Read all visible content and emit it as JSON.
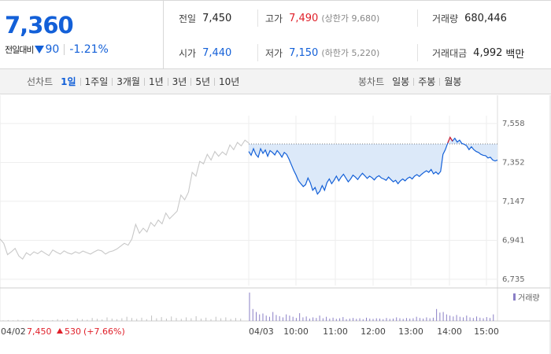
{
  "quote": {
    "price": "7,360",
    "change_label": "전일대비",
    "change_amount": "90",
    "change_pct": "-1.21%",
    "prev_close": {
      "label": "전일",
      "value": "7,450"
    },
    "open": {
      "label": "시가",
      "value": "7,440"
    },
    "high": {
      "label": "고가",
      "value": "7,490",
      "sub": "(상한가 9,680)"
    },
    "low": {
      "label": "저가",
      "value": "7,150",
      "sub": "(하한가 5,220)"
    },
    "volume": {
      "label": "거래량",
      "value": "680,446"
    },
    "amount": {
      "label": "거래대금",
      "value": "4,992",
      "unit": "백만"
    }
  },
  "toolbar": {
    "line_head": "선차트",
    "line_tabs": [
      "1일",
      "1주일",
      "3개월",
      "1년",
      "3년",
      "5년",
      "10년"
    ],
    "active_tab": "1일",
    "candle_head": "봉차트",
    "candle_tabs": [
      "일봉",
      "주봉",
      "월봉"
    ]
  },
  "colors": {
    "up": "#e0202a",
    "down": "#1360d8",
    "prev_day_line": "#c8c8c8",
    "fill": "#dce9f9",
    "volume": "#8a7fc6"
  },
  "chart_data": {
    "type": "line",
    "y_ticks": [
      7558,
      7352,
      7147,
      6941,
      6735
    ],
    "y_tick_labels": [
      "7,558",
      "7,352",
      "7,147",
      "6,941",
      "6,735"
    ],
    "ylim": [
      6735,
      7558
    ],
    "x_tick_labels": [
      "04/02",
      "04/03",
      "10:00",
      "11:00",
      "12:00",
      "13:00",
      "14:00",
      "15:00"
    ],
    "reference_line": 7450,
    "legend": "거래량",
    "prev_day_annotation": {
      "price": "7,450",
      "change": "530",
      "pct": "(+7.66%)"
    },
    "series": [
      {
        "day": "04/02",
        "x_start": 0,
        "x_end": 1,
        "values": [
          6948,
          6925,
          6865,
          6880,
          6898,
          6858,
          6842,
          6875,
          6862,
          6880,
          6870,
          6885,
          6872,
          6860,
          6890,
          6878,
          6868,
          6885,
          6874,
          6868,
          6880,
          6872,
          6884,
          6876,
          6868,
          6880,
          6890,
          6885,
          6868,
          6880,
          6885,
          6895,
          6910,
          6925,
          6915,
          6948,
          7025,
          6978,
          7005,
          6985,
          7035,
          7015,
          7048,
          7028,
          7085,
          7055,
          7075,
          7095,
          7180,
          7155,
          7195,
          7300,
          7280,
          7358,
          7345,
          7395,
          7365,
          7410,
          7385,
          7408,
          7392,
          7445,
          7420,
          7458,
          7440,
          7470,
          7455
        ]
      },
      {
        "day": "04/03",
        "x_start": 1,
        "x_end": 2,
        "values": [
          7410,
          7390,
          7425,
          7395,
          7380,
          7425,
          7400,
          7418,
          7385,
          7415,
          7405,
          7392,
          7415,
          7400,
          7380,
          7405,
          7395,
          7370,
          7340,
          7310,
          7285,
          7255,
          7240,
          7225,
          7235,
          7270,
          7245,
          7205,
          7220,
          7185,
          7200,
          7230,
          7205,
          7245,
          7265,
          7240,
          7258,
          7280,
          7255,
          7275,
          7290,
          7270,
          7250,
          7265,
          7285,
          7275,
          7262,
          7280,
          7295,
          7282,
          7268,
          7280,
          7272,
          7260,
          7275,
          7282,
          7270,
          7265,
          7258,
          7275,
          7262,
          7250,
          7258,
          7240,
          7255,
          7265,
          7255,
          7268,
          7275,
          7265,
          7280,
          7288,
          7278,
          7290,
          7300,
          7308,
          7300,
          7315,
          7292,
          7302,
          7290,
          7305,
          7395,
          7420,
          7455,
          7485,
          7465,
          7480,
          7460,
          7470,
          7452,
          7448,
          7440,
          7420,
          7435,
          7420,
          7410,
          7405,
          7395,
          7390,
          7388,
          7376,
          7380,
          7365,
          7360,
          7365
        ]
      }
    ],
    "volume": {
      "ylim": [
        0,
        100
      ],
      "prev_day": [
        2,
        3,
        2,
        4,
        3,
        2,
        5,
        3,
        4,
        2,
        3,
        6,
        4,
        5,
        3,
        8,
        6,
        4,
        10,
        7,
        5,
        12,
        8,
        6,
        9,
        14,
        10,
        7,
        11,
        6,
        18,
        9,
        13,
        8,
        15,
        10,
        7,
        12,
        9,
        16,
        8,
        11,
        6,
        14,
        9,
        12,
        7,
        10,
        8
      ],
      "today": [
        95,
        40,
        30,
        22,
        25,
        18,
        14,
        30,
        20,
        16,
        12,
        22,
        18,
        14,
        10,
        26,
        12,
        15,
        8,
        12,
        10,
        18,
        9,
        14,
        8,
        11,
        7,
        9,
        13,
        6,
        8,
        10,
        7,
        9,
        6,
        11,
        8,
        7,
        9,
        8,
        6,
        10,
        7,
        8,
        12,
        9,
        7,
        10,
        8,
        9,
        14,
        10,
        8,
        12,
        9,
        11,
        40,
        28,
        30,
        22,
        18,
        15,
        20,
        14,
        12,
        18,
        12,
        10,
        15,
        11,
        9,
        13,
        10,
        22
      ]
    }
  }
}
